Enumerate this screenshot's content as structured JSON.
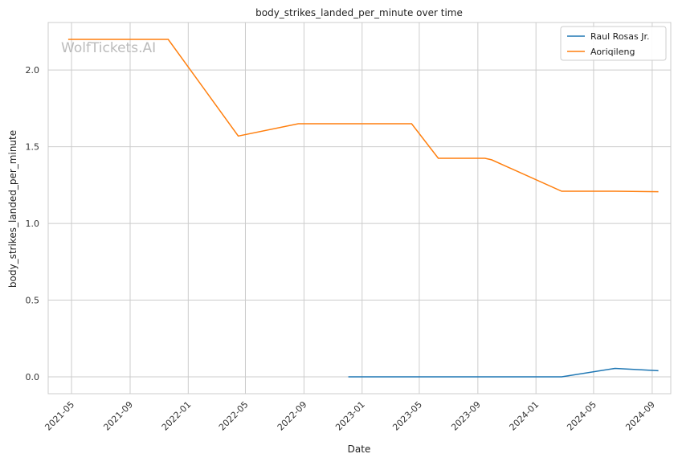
{
  "chart_data": {
    "type": "line",
    "title": "body_strikes_landed_per_minute over time",
    "xlabel": "Date",
    "ylabel": "body_strikes_landed_per_minute",
    "watermark": "WolfTickets.AI",
    "x_ticks": [
      "2021-05",
      "2021-09",
      "2022-01",
      "2022-05",
      "2022-09",
      "2023-01",
      "2023-05",
      "2023-09",
      "2024-01",
      "2024-05",
      "2024-09"
    ],
    "y_ticks": [
      "0.0",
      "0.5",
      "1.0",
      "1.5",
      "2.0"
    ],
    "xlim": [
      "2021-03-13",
      "2024-10-10"
    ],
    "ylim": [
      -0.11,
      2.31
    ],
    "grid": true,
    "legend_position": "top-right",
    "series": [
      {
        "name": "Raul Rosas Jr.",
        "color": "#1f77b4",
        "x": [
          "2022-12-03",
          "2024-02-24",
          "2024-06-15",
          "2024-09-14"
        ],
        "y": [
          0.0,
          0.0,
          0.055,
          0.04
        ]
      },
      {
        "name": "Aoriqileng",
        "color": "#ff7f0e",
        "x": [
          "2021-04-24",
          "2021-11-20",
          "2022-04-16",
          "2022-08-20",
          "2023-04-15",
          "2023-06-10",
          "2023-09-16",
          "2023-09-30",
          "2024-02-24",
          "2024-06-15",
          "2024-09-14"
        ],
        "y": [
          2.2,
          2.2,
          1.57,
          1.65,
          1.65,
          1.425,
          1.425,
          1.415,
          1.21,
          1.21,
          1.207
        ]
      }
    ]
  }
}
